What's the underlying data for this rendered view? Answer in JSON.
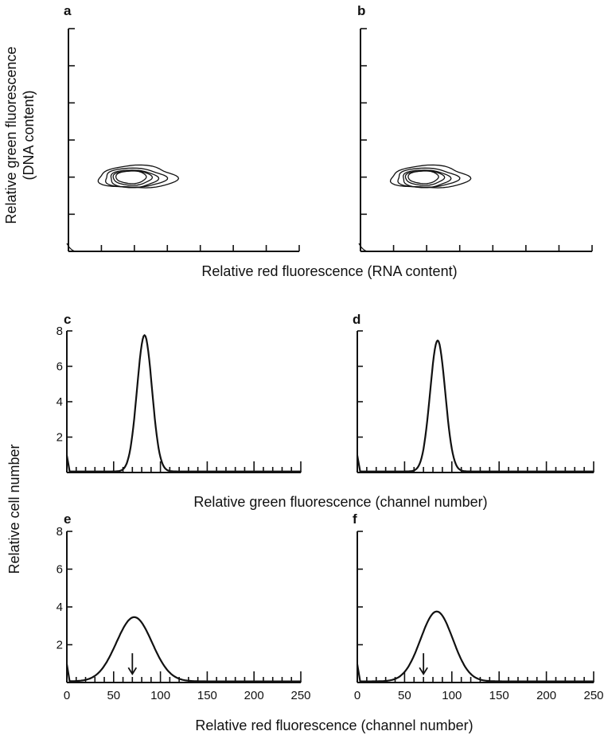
{
  "chart_data": [
    {
      "panel": "a",
      "type": "contour",
      "xlabel": "Relative red fluorescence (RNA content)",
      "ylabel": "Relative green fluorescence (DNA content)",
      "x_ticks": 7,
      "y_ticks": 6,
      "contour_center": [
        1.95,
        2.0
      ],
      "contour_levels": 5
    },
    {
      "panel": "b",
      "type": "contour",
      "xlabel": "Relative red fluorescence (RNA content)",
      "ylabel": "Relative green fluorescence (DNA content)",
      "x_ticks": 7,
      "y_ticks": 6,
      "contour_center": [
        1.95,
        2.0
      ],
      "contour_levels": 5
    },
    {
      "panel": "c",
      "type": "line",
      "xlabel": "Relative green fluorescence (channel number)",
      "ylabel": "Relative cell number",
      "xlim": [
        0,
        250
      ],
      "ylim": [
        0,
        8
      ],
      "y_tick_labels": [
        "2",
        "4",
        "6",
        "8"
      ],
      "series": [
        {
          "peak_x": 83,
          "peak_y": 7.7,
          "width": 8
        }
      ]
    },
    {
      "panel": "d",
      "type": "line",
      "xlabel": "Relative green fluorescence (channel number)",
      "ylabel": "Relative cell number",
      "xlim": [
        0,
        250
      ],
      "ylim": [
        0,
        8
      ],
      "series": [
        {
          "peak_x": 85,
          "peak_y": 7.4,
          "width": 8
        }
      ]
    },
    {
      "panel": "e",
      "type": "line",
      "xlabel": "Relative red fluorescence (channel number)",
      "ylabel": "Relative cell number",
      "xlim": [
        0,
        250
      ],
      "ylim": [
        0,
        8
      ],
      "x_tick_labels": [
        "0",
        "50",
        "100",
        "150",
        "200",
        "250"
      ],
      "y_tick_labels": [
        "2",
        "4",
        "6",
        "8"
      ],
      "series": [
        {
          "peak_x": 72,
          "peak_y": 3.4,
          "width": 19
        }
      ],
      "arrow_x": 70
    },
    {
      "panel": "f",
      "type": "line",
      "xlabel": "Relative red fluorescence (channel number)",
      "ylabel": "Relative cell number",
      "xlim": [
        0,
        250
      ],
      "ylim": [
        0,
        8
      ],
      "x_tick_labels": [
        "0",
        "50",
        "100",
        "150",
        "200",
        "250"
      ],
      "series": [
        {
          "peak_x": 84,
          "peak_y": 3.7,
          "width": 17
        }
      ],
      "arrow_x": 70
    }
  ],
  "labels": {
    "panel_a": "a",
    "panel_b": "b",
    "panel_c": "c",
    "panel_d": "d",
    "panel_e": "e",
    "panel_f": "f",
    "top_ylabel_line1": "Relative green fluorescence",
    "top_ylabel_line2": "(DNA content)",
    "top_xlabel": "Relative red fluorescence (RNA content)",
    "middle_xlabel": "Relative green fluorescence (channel number)",
    "bottom_xlabel": "Relative red fluorescence (channel number)",
    "bottom_ylabel": "Relative cell number"
  }
}
